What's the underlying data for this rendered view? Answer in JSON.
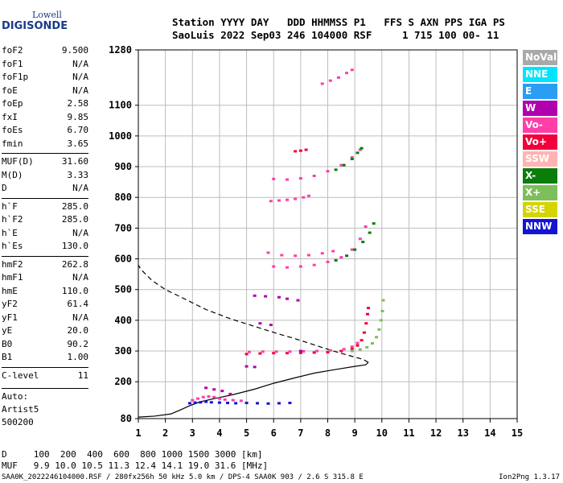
{
  "logo": {
    "line1": "Lowell",
    "line2": "DIGISONDE"
  },
  "header": {
    "line1": "Station YYYY DAY   DDD HHMMSS P1   FFS S AXN PPS IGA PS",
    "line2": "SaoLuis 2022 Sep03 246 104000 RSF     1 715 100 00- 11"
  },
  "parameters": [
    [
      {
        "name": "foF2",
        "value": "9.500"
      },
      {
        "name": "foF1",
        "value": "N/A"
      },
      {
        "name": "foF1p",
        "value": "N/A"
      },
      {
        "name": "foE",
        "value": "N/A"
      },
      {
        "name": "foEp",
        "value": "2.58"
      },
      {
        "name": "fxI",
        "value": "9.85"
      },
      {
        "name": "foEs",
        "value": "6.70"
      },
      {
        "name": "fmin",
        "value": "3.65"
      }
    ],
    [
      {
        "name": "MUF(D)",
        "value": "31.60"
      },
      {
        "name": "M(D)",
        "value": "3.33"
      },
      {
        "name": "D",
        "value": "N/A"
      }
    ],
    [
      {
        "name": "h`F",
        "value": "285.0"
      },
      {
        "name": "h`F2",
        "value": "285.0"
      },
      {
        "name": "h`E",
        "value": "N/A"
      },
      {
        "name": "h`Es",
        "value": "130.0"
      }
    ],
    [
      {
        "name": "hmF2",
        "value": "262.8"
      },
      {
        "name": "hmF1",
        "value": "N/A"
      },
      {
        "name": "hmE",
        "value": "110.0"
      },
      {
        "name": "yF2",
        "value": "61.4"
      },
      {
        "name": "yF1",
        "value": "N/A"
      },
      {
        "name": "yE",
        "value": "20.0"
      },
      {
        "name": "B0",
        "value": "90.2"
      },
      {
        "name": "B1",
        "value": "1.00"
      }
    ],
    [
      {
        "name": "C-level",
        "value": "11"
      }
    ]
  ],
  "auto": {
    "line1": "Auto:",
    "line2": "Artist5",
    "line3": "500200"
  },
  "legend": [
    {
      "label": "NoVal",
      "color": "#a9a9a9"
    },
    {
      "label": "NNE",
      "color": "#00e5ff"
    },
    {
      "label": "E",
      "color": "#2a9df4"
    },
    {
      "label": "W",
      "color": "#b000b0"
    },
    {
      "label": "Vo-",
      "color": "#ff3ea8"
    },
    {
      "label": "Vo+",
      "color": "#f0003c"
    },
    {
      "label": "SSW",
      "color": "#ffb4b4"
    },
    {
      "label": "X-",
      "color": "#0a7d0a"
    },
    {
      "label": "X+",
      "color": "#7dbf5a"
    },
    {
      "label": "SSE",
      "color": "#d4d400"
    },
    {
      "label": "NNW",
      "color": "#1414d2"
    }
  ],
  "bottom": {
    "d_row": "D     100  200  400  600  800 1000 1500 3000 [km]",
    "muf_row": "MUF   9.9 10.0 10.5 11.3 12.4 14.1 19.0 31.6 [MHz]"
  },
  "footer": {
    "left": "SAA0K_2022246104000.RSF / 280fx256h 50 kHz 5.0 km / DPS-4 SAA0K 903 / 2.6 S 315.8 E",
    "right": "Ion2Png 1.3.17"
  },
  "chart_data": {
    "type": "scatter",
    "xlim": [
      1,
      15
    ],
    "ylim": [
      80,
      1280
    ],
    "x_ticks": [
      "1",
      "2",
      "3",
      "4",
      "5",
      "6",
      "7",
      "8",
      "9",
      "10",
      "11",
      "12",
      "13",
      "14",
      "15"
    ],
    "y_ticks": [
      {
        "value": 80,
        "label": "80"
      },
      {
        "value": 200,
        "label": "200"
      },
      {
        "value": 300,
        "label": "300"
      },
      {
        "value": 400,
        "label": "400"
      },
      {
        "value": 500,
        "label": "500"
      },
      {
        "value": 600,
        "label": "600"
      },
      {
        "value": 700,
        "label": "700"
      },
      {
        "value": 800,
        "label": "800"
      },
      {
        "value": 900,
        "label": "900"
      },
      {
        "value": 1000,
        "label": "1000"
      },
      {
        "value": 1100,
        "label": "1100"
      },
      {
        "value": 1280,
        "label": "1280"
      }
    ],
    "grid": true,
    "x_unit": "MHz",
    "y_unit": "km",
    "traces": [
      {
        "name": "E-layer echoes (130 km)",
        "color": "#1414d2",
        "points": [
          [
            2.9,
            130
          ],
          [
            3.1,
            132
          ],
          [
            3.3,
            133
          ],
          [
            3.5,
            135
          ],
          [
            3.7,
            133
          ],
          [
            4.0,
            132
          ],
          [
            4.3,
            131
          ],
          [
            4.6,
            130
          ],
          [
            5.0,
            131
          ],
          [
            5.4,
            130
          ],
          [
            5.8,
            129
          ],
          [
            6.2,
            130
          ],
          [
            6.6,
            131
          ]
        ]
      },
      {
        "name": "E-layer echoes O",
        "color": "#ff3ea8",
        "points": [
          [
            3.0,
            140
          ],
          [
            3.2,
            145
          ],
          [
            3.4,
            150
          ],
          [
            3.6,
            152
          ],
          [
            3.8,
            150
          ],
          [
            4.0,
            145
          ],
          [
            4.2,
            142
          ],
          [
            4.5,
            140
          ],
          [
            4.8,
            138
          ]
        ]
      },
      {
        "name": "F-layer O trace",
        "color": "#f0003c",
        "points": [
          [
            5.0,
            290
          ],
          [
            5.5,
            292
          ],
          [
            6.0,
            293
          ],
          [
            6.5,
            293
          ],
          [
            7.0,
            294
          ],
          [
            7.5,
            295
          ],
          [
            8.0,
            296
          ],
          [
            8.5,
            300
          ],
          [
            8.9,
            308
          ],
          [
            9.1,
            318
          ],
          [
            9.25,
            335
          ],
          [
            9.35,
            360
          ],
          [
            9.42,
            390
          ],
          [
            9.47,
            420
          ],
          [
            9.5,
            440
          ]
        ]
      },
      {
        "name": "F-layer O trace 2",
        "color": "#ff3ea8",
        "points": [
          [
            5.1,
            297
          ],
          [
            5.6,
            298
          ],
          [
            6.1,
            298
          ],
          [
            6.6,
            298
          ],
          [
            7.1,
            299
          ],
          [
            7.6,
            300
          ],
          [
            8.1,
            302
          ],
          [
            8.6,
            306
          ],
          [
            8.9,
            314
          ],
          [
            9.1,
            326
          ]
        ]
      },
      {
        "name": "F-layer X trace",
        "color": "#7dbf5a",
        "points": [
          [
            8.9,
            300
          ],
          [
            9.2,
            305
          ],
          [
            9.45,
            312
          ],
          [
            9.65,
            325
          ],
          [
            9.8,
            345
          ],
          [
            9.9,
            370
          ],
          [
            9.97,
            400
          ],
          [
            10.02,
            430
          ],
          [
            10.05,
            465
          ]
        ]
      },
      {
        "name": "Second hop F",
        "color": "#ff3ea8",
        "points": [
          [
            6.0,
            575
          ],
          [
            6.5,
            572
          ],
          [
            7.0,
            575
          ],
          [
            7.5,
            580
          ],
          [
            8.0,
            590
          ],
          [
            8.5,
            605
          ],
          [
            8.9,
            630
          ],
          [
            9.2,
            665
          ],
          [
            9.4,
            705
          ]
        ]
      },
      {
        "name": "Second hop F X",
        "color": "#0a7d0a",
        "points": [
          [
            8.3,
            595
          ],
          [
            8.7,
            610
          ],
          [
            9.0,
            630
          ],
          [
            9.3,
            655
          ],
          [
            9.55,
            685
          ],
          [
            9.7,
            715
          ]
        ]
      },
      {
        "name": "Second hop upper",
        "color": "#ff3ea8",
        "points": [
          [
            5.8,
            620
          ],
          [
            6.3,
            612
          ],
          [
            6.8,
            610
          ],
          [
            7.3,
            612
          ],
          [
            7.8,
            618
          ],
          [
            8.2,
            625
          ]
        ]
      },
      {
        "name": "Third hop F",
        "color": "#ff3ea8",
        "points": [
          [
            6.0,
            860
          ],
          [
            6.5,
            858
          ],
          [
            7.0,
            862
          ],
          [
            7.5,
            870
          ],
          [
            8.0,
            885
          ],
          [
            8.5,
            905
          ],
          [
            8.9,
            930
          ],
          [
            9.2,
            955
          ]
        ]
      },
      {
        "name": "Third hop F X",
        "color": "#0a7d0a",
        "points": [
          [
            8.3,
            890
          ],
          [
            8.6,
            905
          ],
          [
            8.9,
            925
          ],
          [
            9.1,
            945
          ],
          [
            9.25,
            960
          ]
        ]
      },
      {
        "name": "Es multiples",
        "color": "#ff3ea8",
        "points": [
          [
            5.9,
            788
          ],
          [
            6.2,
            790
          ],
          [
            6.5,
            792
          ],
          [
            6.8,
            795
          ],
          [
            7.1,
            800
          ],
          [
            7.3,
            805
          ]
        ]
      },
      {
        "name": "Es 950",
        "color": "#f0003c",
        "points": [
          [
            6.8,
            950
          ],
          [
            7.0,
            952
          ],
          [
            7.2,
            955
          ]
        ]
      },
      {
        "name": "Fourth hop",
        "color": "#ff3ea8",
        "points": [
          [
            7.8,
            1170
          ],
          [
            8.1,
            1180
          ],
          [
            8.4,
            1190
          ],
          [
            8.7,
            1205
          ],
          [
            8.9,
            1215
          ]
        ]
      },
      {
        "name": "Misc echoes",
        "color": "#b000b0",
        "points": [
          [
            5.3,
            480
          ],
          [
            5.7,
            478
          ],
          [
            6.2,
            475
          ],
          [
            6.5,
            470
          ],
          [
            6.9,
            465
          ],
          [
            5.5,
            390
          ],
          [
            5.9,
            385
          ],
          [
            5.0,
            250
          ],
          [
            5.3,
            248
          ],
          [
            7.0,
            300
          ],
          [
            3.5,
            180
          ],
          [
            3.8,
            175
          ],
          [
            4.1,
            170
          ],
          [
            4.4,
            160
          ]
        ]
      }
    ],
    "profile_curve": {
      "name": "Electron density profile",
      "style": "solid",
      "points": [
        [
          1.0,
          85
        ],
        [
          1.6,
          88
        ],
        [
          2.2,
          95
        ],
        [
          2.6,
          110
        ],
        [
          2.9,
          122
        ],
        [
          3.3,
          135
        ],
        [
          3.8,
          145
        ],
        [
          4.5,
          158
        ],
        [
          5.3,
          176
        ],
        [
          6.0,
          195
        ],
        [
          6.8,
          213
        ],
        [
          7.5,
          228
        ],
        [
          8.3,
          240
        ],
        [
          9.0,
          250
        ],
        [
          9.4,
          255
        ],
        [
          9.5,
          263
        ],
        [
          9.3,
          273
        ],
        [
          8.8,
          285
        ],
        [
          8.2,
          300
        ],
        [
          7.5,
          320
        ],
        [
          6.8,
          340
        ],
        [
          6.2,
          355
        ],
        [
          5.3,
          380
        ],
        [
          4.4,
          405
        ],
        [
          3.5,
          435
        ],
        [
          2.7,
          470
        ],
        [
          2.0,
          500
        ],
        [
          1.5,
          530
        ],
        [
          1.1,
          565
        ],
        [
          1.0,
          580
        ]
      ]
    }
  }
}
